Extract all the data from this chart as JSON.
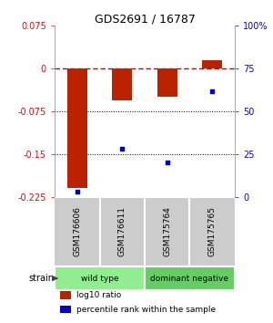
{
  "title": "GDS2691 / 16787",
  "samples": [
    "GSM176606",
    "GSM176611",
    "GSM175764",
    "GSM175765"
  ],
  "log10_ratio": [
    -0.21,
    -0.055,
    -0.05,
    0.015
  ],
  "percentile_rank": [
    3,
    28,
    20,
    62
  ],
  "groups": [
    {
      "label": "wild type",
      "samples": [
        0,
        1
      ],
      "color": "#90ee90"
    },
    {
      "label": "dominant negative",
      "samples": [
        2,
        3
      ],
      "color": "#66cc66"
    }
  ],
  "group_label": "strain",
  "bar_color": "#bb2200",
  "dot_color": "#0000cc",
  "left_ylim": [
    -0.225,
    0.075
  ],
  "left_yticks": [
    0.075,
    0,
    -0.075,
    -0.15,
    -0.225
  ],
  "left_yticklabels": [
    "0.075",
    "0",
    "-0.075",
    "-0.15",
    "-0.225"
  ],
  "right_ylim": [
    0,
    100
  ],
  "right_yticks": [
    100,
    75,
    50,
    25,
    0
  ],
  "right_yticklabels": [
    "100%",
    "75",
    "50",
    "25",
    "0"
  ],
  "hline_y": 0,
  "hline_color": "#cc0000",
  "dotted_lines": [
    -0.075,
    -0.15
  ],
  "background_color": "#ffffff",
  "label_bg": "#cccccc"
}
